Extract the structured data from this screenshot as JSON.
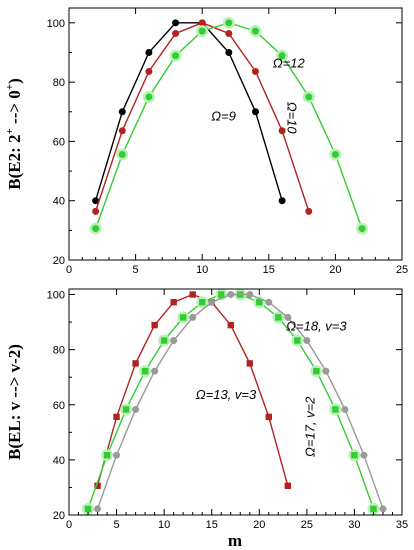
{
  "chart_data": [
    {
      "type": "line",
      "ylabel_parts": [
        "B(E2: 2",
        "+",
        " --> 0",
        "+",
        ")"
      ],
      "xlim": [
        0,
        25
      ],
      "ylim": [
        20,
        105
      ],
      "xticks": [
        "0",
        "5",
        "10",
        "15",
        "20",
        "25"
      ],
      "yticks": [
        "20",
        "40",
        "60",
        "80",
        "100"
      ],
      "series": [
        {
          "color": "#000000",
          "marker": "circle",
          "x": [
            2,
            4,
            6,
            8,
            10,
            12,
            14,
            16
          ],
          "y": [
            40,
            70,
            90,
            100,
            100,
            90,
            70,
            40
          ]
        },
        {
          "color": "#b22222",
          "marker": "circle",
          "x": [
            2,
            4,
            6,
            8,
            10,
            12,
            14,
            16,
            18
          ],
          "y": [
            36.4,
            63.6,
            83.6,
            96.4,
            100,
            96.4,
            83.6,
            63.6,
            36.4
          ]
        },
        {
          "color": "#33cc33",
          "marker": "circle",
          "halo": "#b8f0b8",
          "x": [
            2,
            4,
            6,
            8,
            10,
            12,
            14,
            16,
            18,
            20,
            22
          ],
          "y": [
            30.6,
            55.6,
            75,
            88.9,
            97.2,
            100,
            97.2,
            88.9,
            75,
            55.6,
            30.6
          ]
        }
      ],
      "annotations": [
        {
          "text": "Ω=9",
          "x": 11.6,
          "y": 67,
          "rotate": 0
        },
        {
          "text": "Ω=10",
          "x": 16.4,
          "y": 68,
          "rotate": 90
        },
        {
          "text": "Ω=12",
          "x": 16.5,
          "y": 85,
          "rotate": 0
        }
      ]
    },
    {
      "type": "line",
      "ylabel": "B(EL: v --> v-2)",
      "xlabel": "m",
      "xlim": [
        0,
        35
      ],
      "ylim": [
        20,
        102
      ],
      "xticks": [
        "0",
        "5",
        "10",
        "15",
        "20",
        "25",
        "30",
        "35"
      ],
      "yticks": [
        "20",
        "40",
        "60",
        "80",
        "100"
      ],
      "series": [
        {
          "color": "#b22222",
          "marker": "square",
          "x": [
            3,
            5,
            7,
            9,
            11,
            13,
            15,
            17,
            19,
            21,
            23
          ],
          "y": [
            30.6,
            55.6,
            75,
            88.9,
            97.2,
            100,
            97.2,
            88.9,
            75,
            55.6,
            30.6
          ]
        },
        {
          "color": "#33cc33",
          "marker": "square",
          "halo": "#b8f0b8",
          "x": [
            2,
            4,
            6,
            8,
            10,
            12,
            14,
            16,
            18,
            20,
            22,
            24,
            26,
            28,
            30,
            32
          ],
          "y": [
            22.2,
            41.7,
            58.3,
            72.2,
            83.3,
            91.7,
            97.2,
            100,
            100,
            97.2,
            91.7,
            83.3,
            72.2,
            58.3,
            41.7,
            22.2
          ]
        },
        {
          "color": "#999999",
          "marker": "circle",
          "x": [
            3,
            5,
            7,
            9,
            11,
            13,
            15,
            17,
            19,
            21,
            23,
            25,
            27,
            29,
            31,
            33
          ],
          "y": [
            22.2,
            41.7,
            58.3,
            72.2,
            83.3,
            91.7,
            97.2,
            100,
            100,
            97.2,
            91.7,
            83.3,
            72.2,
            58.3,
            41.7,
            22.2
          ]
        }
      ],
      "annotations": [
        {
          "text": "Ω=13, v=3",
          "x": 16.5,
          "y": 62,
          "rotate": 0
        },
        {
          "text": "Ω=17, v=2",
          "x": 25.8,
          "y": 52,
          "rotate": -90
        },
        {
          "text": "Ω=18, v=3",
          "x": 26,
          "y": 87,
          "rotate": 0
        }
      ]
    }
  ]
}
